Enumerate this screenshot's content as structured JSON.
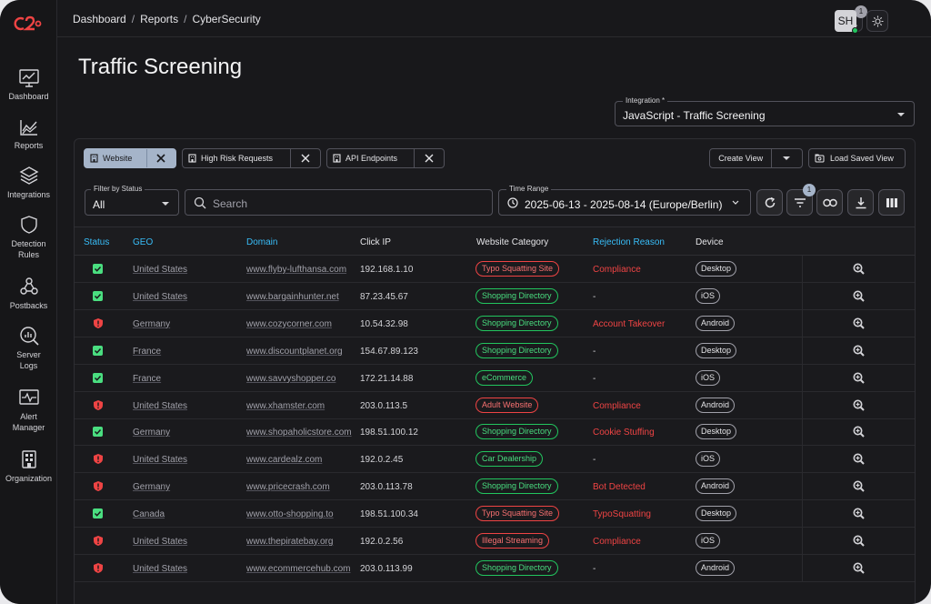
{
  "sidebar": {
    "items": [
      {
        "label": "Dashboard",
        "icon": "chart-monitor-icon"
      },
      {
        "label": "Reports",
        "icon": "line-chart-icon"
      },
      {
        "label": "Integrations",
        "icon": "layers-icon"
      },
      {
        "label": "Detection Rules",
        "icon": "shield-icon"
      },
      {
        "label": "Postbacks",
        "icon": "webhook-icon"
      },
      {
        "label": "Server Logs",
        "icon": "log-search-icon"
      },
      {
        "label": "Alert Manager",
        "icon": "pulse-monitor-icon"
      },
      {
        "label": "Organization",
        "icon": "building-icon"
      }
    ]
  },
  "header": {
    "breadcrumb": [
      "Dashboard",
      "Reports",
      "CyberSecurity"
    ],
    "breadcrumb_sep": "/",
    "notifications_count": "1",
    "avatar": "SH"
  },
  "page": {
    "title": "Traffic Screening",
    "integration_label": "Integration *",
    "integration_value": "JavaScript - Traffic Screening"
  },
  "views": {
    "chips": [
      "Website",
      "High Risk Requests",
      "API Endpoints"
    ],
    "create_view": "Create View",
    "load_saved_view": "Load Saved View"
  },
  "filters": {
    "status_label": "Filter by Status",
    "status_value": "All",
    "search_placeholder": "Search",
    "time_label": "Time Range",
    "time_value": "2025-06-13 - 2025-08-14 (Europe/Berlin)",
    "filter_badge": "1"
  },
  "table": {
    "columns": [
      "Status",
      "GEO",
      "Domain",
      "Click IP",
      "Website Category",
      "Rejection Reason",
      "Device"
    ],
    "rows": [
      {
        "status": "ok",
        "geo": "United States",
        "domain": "www.flyby-lufthansa.com",
        "ip": "192.168.1.10",
        "category": "Typo Squatting Site",
        "cat_color": "red",
        "reason": "Compliance",
        "device": "Desktop"
      },
      {
        "status": "ok",
        "geo": "United States",
        "domain": "www.bargainhunter.net",
        "ip": "87.23.45.67",
        "category": "Shopping Directory",
        "cat_color": "green",
        "reason": "-",
        "device": "iOS"
      },
      {
        "status": "risk",
        "geo": "Germany",
        "domain": "www.cozycorner.com",
        "ip": "10.54.32.98",
        "category": "Shopping Directory",
        "cat_color": "green",
        "reason": "Account Takeover",
        "device": "Android"
      },
      {
        "status": "ok",
        "geo": "France",
        "domain": "www.discountplanet.org",
        "ip": "154.67.89.123",
        "category": "Shopping Directory",
        "cat_color": "green",
        "reason": "-",
        "device": "Desktop"
      },
      {
        "status": "ok",
        "geo": "France",
        "domain": "www.savvyshopper.co",
        "ip": "172.21.14.88",
        "category": "eCommerce",
        "cat_color": "green",
        "reason": "-",
        "device": "iOS"
      },
      {
        "status": "risk",
        "geo": "United States",
        "domain": "www.xhamster.com",
        "ip": "203.0.113.5",
        "category": "Adult Website",
        "cat_color": "red",
        "reason": "Compliance",
        "device": "Android"
      },
      {
        "status": "ok",
        "geo": "Germany",
        "domain": "www.shopaholicstore.com",
        "ip": "198.51.100.12",
        "category": "Shopping Directory",
        "cat_color": "green",
        "reason": "Cookie Stuffing",
        "device": "Desktop"
      },
      {
        "status": "risk",
        "geo": "United States",
        "domain": "www.cardealz.com",
        "ip": "192.0.2.45",
        "category": "Car Dealership",
        "cat_color": "green",
        "reason": "-",
        "device": "iOS"
      },
      {
        "status": "risk",
        "geo": "Germany",
        "domain": "www.pricecrash.com",
        "ip": "203.0.113.78",
        "category": "Shopping Directory",
        "cat_color": "green",
        "reason": "Bot Detected",
        "device": "Android"
      },
      {
        "status": "ok",
        "geo": "Canada",
        "domain": "www.otto-shopping.to",
        "ip": "198.51.100.34",
        "category": "Typo Squatting Site",
        "cat_color": "red",
        "reason": "TypoSquatting",
        "device": "Desktop"
      },
      {
        "status": "risk",
        "geo": "United States",
        "domain": "www.thepiratebay.org",
        "ip": "192.0.2.56",
        "category": "Illegal Streaming",
        "cat_color": "red",
        "reason": "Compliance",
        "device": "iOS"
      },
      {
        "status": "risk",
        "geo": "United States",
        "domain": "www.ecommercehub.com",
        "ip": "203.0.113.99",
        "category": "Shopping Directory",
        "cat_color": "green",
        "reason": "-",
        "device": "Android"
      }
    ]
  },
  "colors": {
    "accent_blue": "#38bdf8",
    "ok_green": "#4ade80",
    "risk_red": "#ef4444"
  }
}
